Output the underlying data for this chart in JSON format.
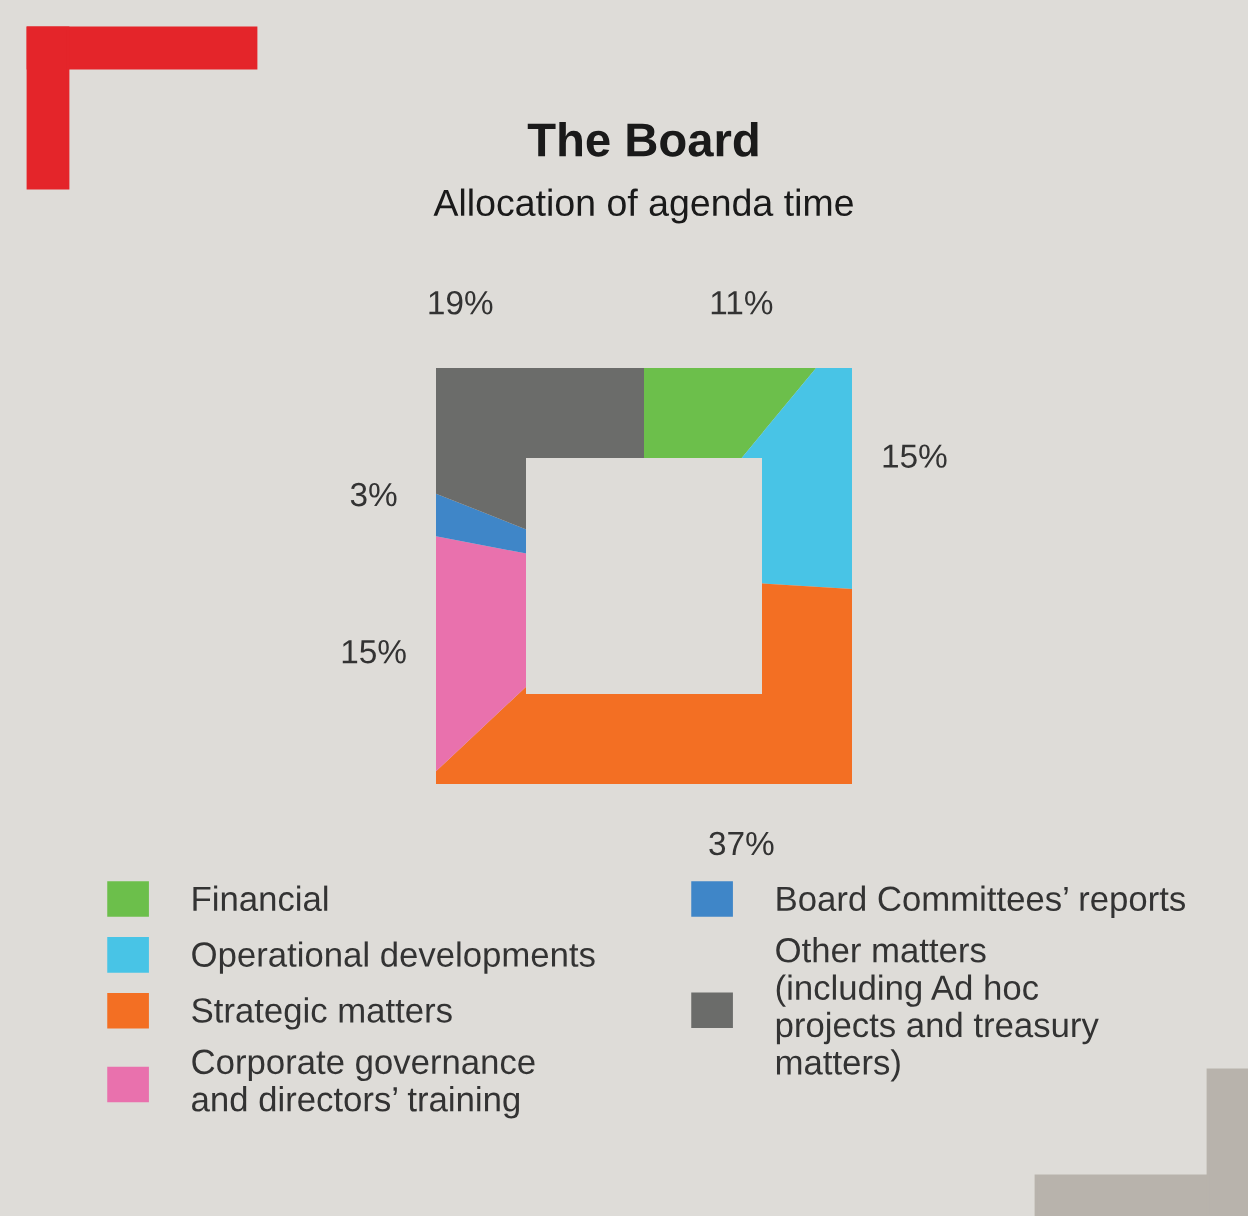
{
  "chart_data": {
    "type": "donut",
    "title": "The Board",
    "subtitle": "Allocation of agenda time",
    "categories": [
      "Financial",
      "Operational developments",
      "Strategic matters",
      "Corporate governance\nand directors’ training",
      "Board Committees’ reports",
      "Other matters\n(including Ad hoc\nprojects and treasury\nmatters)"
    ],
    "values": [
      11,
      15,
      37,
      15,
      3,
      19
    ],
    "colors": [
      "#6cbf4b",
      "#48c4e6",
      "#f36f23",
      "#e971ad",
      "#3f86c8",
      "#6b6c6a"
    ],
    "value_labels": [
      "11%",
      "15%",
      "37%",
      "15%",
      "3%",
      "19%"
    ],
    "legend": "bottom"
  }
}
